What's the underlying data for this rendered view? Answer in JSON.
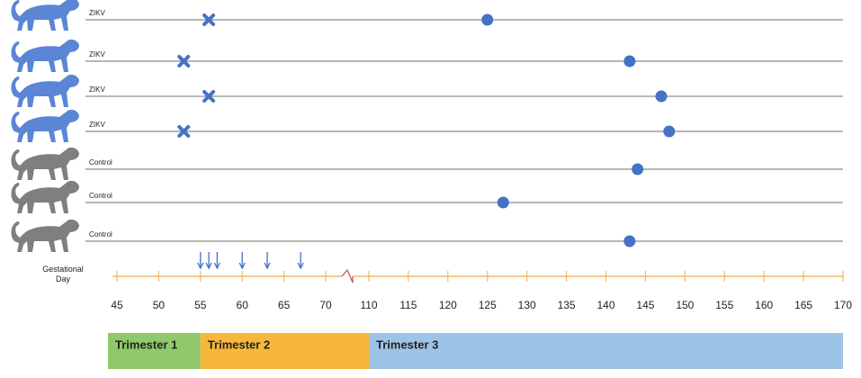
{
  "chart_data": {
    "type": "timeline",
    "x_label": "Gestational Day",
    "xlim": [
      45,
      170
    ],
    "axis_break": [
      70,
      110
    ],
    "xticks": [
      45,
      50,
      55,
      60,
      65,
      70,
      110,
      115,
      120,
      125,
      130,
      135,
      140,
      145,
      150,
      155,
      160,
      165,
      170
    ],
    "axis_color": "#f0b96b",
    "marker_color": "#4472c4",
    "subjects": [
      {
        "label": "ZIKV",
        "color": "#5b86d6",
        "infection_day": 56,
        "delivery_day": 125
      },
      {
        "label": "ZIKV",
        "color": "#5b86d6",
        "infection_day": 53,
        "delivery_day": 143
      },
      {
        "label": "ZIKV",
        "color": "#5b86d6",
        "infection_day": 56,
        "delivery_day": 147
      },
      {
        "label": "ZIKV",
        "color": "#5b86d6",
        "infection_day": 53,
        "delivery_day": 148
      },
      {
        "label": "Control",
        "color": "#7f7f7f",
        "infection_day": null,
        "delivery_day": 144
      },
      {
        "label": "Control",
        "color": "#7f7f7f",
        "infection_day": null,
        "delivery_day": 127
      },
      {
        "label": "Control",
        "color": "#7f7f7f",
        "infection_day": null,
        "delivery_day": 143
      }
    ],
    "sampling_days": [
      55,
      56,
      57,
      60,
      63,
      67
    ],
    "trimesters": [
      {
        "label": "Trimester 1",
        "end": 55,
        "color": "#8fc96b"
      },
      {
        "label": "Trimester 2",
        "end": 110,
        "color": "#f6b73c"
      },
      {
        "label": "Trimester 3",
        "end": 170,
        "color": "#9dc3e6"
      }
    ]
  }
}
